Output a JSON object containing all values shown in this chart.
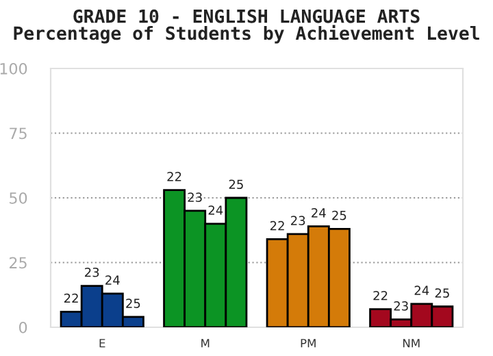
{
  "chart_data": {
    "type": "bar",
    "title": "GRADE 10 - ENGLISH LANGUAGE ARTS",
    "subtitle": "Percentage of Students by Achievement Level",
    "categories": [
      "E",
      "M",
      "PM",
      "NM"
    ],
    "series": [
      {
        "name": "22",
        "colors": [
          "#0b3f8c",
          "#0c9424",
          "#d47b09",
          "#a3081e"
        ],
        "values": [
          6,
          53,
          34,
          7
        ]
      },
      {
        "name": "23",
        "colors": [
          "#0b3f8c",
          "#0c9424",
          "#d47b09",
          "#a3081e"
        ],
        "values": [
          16,
          45,
          36,
          3
        ]
      },
      {
        "name": "24",
        "colors": [
          "#0b3f8c",
          "#0c9424",
          "#d47b09",
          "#a3081e"
        ],
        "values": [
          13,
          40,
          39,
          9
        ]
      },
      {
        "name": "25",
        "colors": [
          "#0b3f8c",
          "#0c9424",
          "#d47b09",
          "#a3081e"
        ],
        "values": [
          4,
          50,
          38,
          8
        ]
      }
    ],
    "ylim": [
      0,
      100
    ],
    "yticks": [
      0,
      25,
      50,
      75,
      100
    ],
    "grid": "y",
    "legend": false
  }
}
